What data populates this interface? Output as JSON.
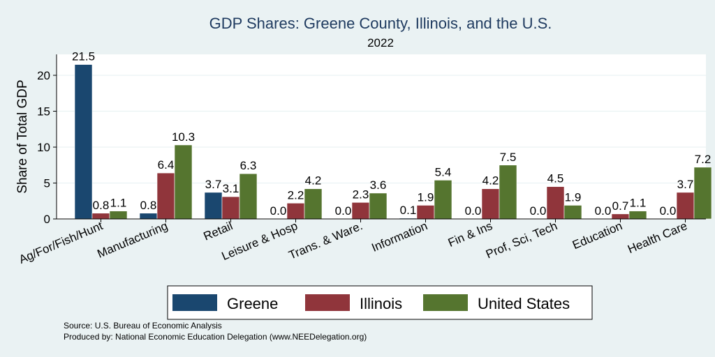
{
  "chart_data": {
    "type": "bar",
    "title": "GDP Shares: Greene County, Illinois, and the U.S.",
    "subtitle": "2022",
    "xlabel": "",
    "ylabel": "Share of Total GDP",
    "ylim": [
      0,
      23
    ],
    "yticks": [
      0,
      5,
      10,
      15,
      20
    ],
    "grid": true,
    "legend_position": "bottom",
    "categories": [
      "Ag/For/Fish/Hunt",
      "Manufacturing",
      "Retail",
      "Leisure & Hosp",
      "Trans. & Ware.",
      "Information",
      "Fin & Ins",
      "Prof, Sci, Tech",
      "Education",
      "Health Care"
    ],
    "series": [
      {
        "name": "Greene",
        "color": "#1a476f",
        "values": [
          21.5,
          0.8,
          3.7,
          0.0,
          0.0,
          0.1,
          0.0,
          0.0,
          0.0,
          0.0
        ]
      },
      {
        "name": "Illinois",
        "color": "#90353b",
        "values": [
          0.8,
          6.4,
          3.1,
          2.2,
          2.3,
          1.9,
          4.2,
          4.5,
          0.7,
          3.7
        ]
      },
      {
        "name": "United States",
        "color": "#55752f",
        "values": [
          1.1,
          10.3,
          6.3,
          4.2,
          3.6,
          5.4,
          7.5,
          1.9,
          1.1,
          7.2
        ]
      }
    ],
    "notes": [
      "Source: U.S. Bureau of Economic Analysis",
      "Produced by: National Economic Education Delegation (www.NEEDelegation.org)"
    ]
  }
}
